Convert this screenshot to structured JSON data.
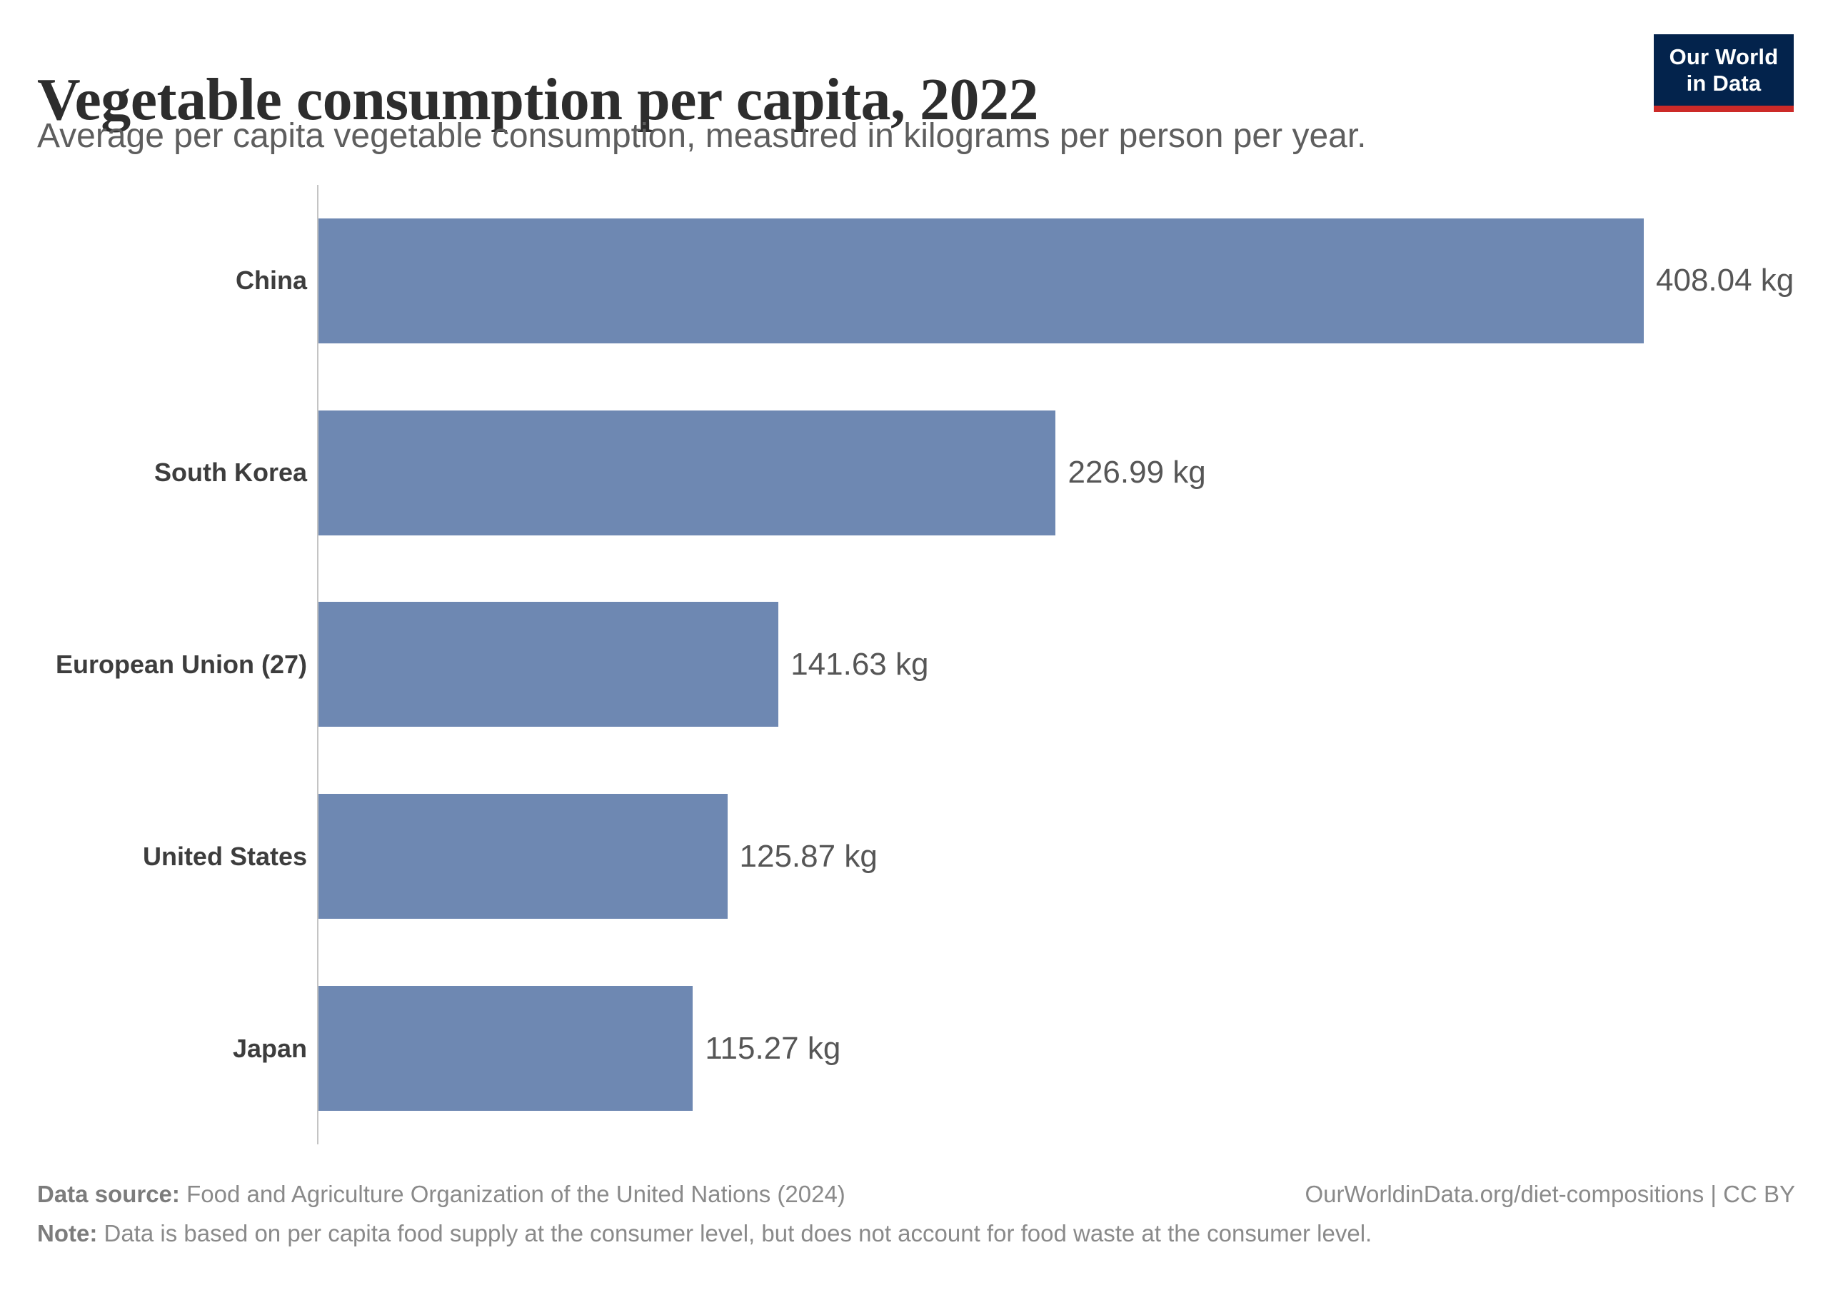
{
  "header": {
    "title": "Vegetable consumption per capita, 2022",
    "subtitle": "Average per capita vegetable consumption, measured in kilograms per person per year.",
    "logo": {
      "line1": "Our World",
      "line2": "in Data"
    }
  },
  "chart_data": {
    "type": "bar",
    "orientation": "horizontal",
    "title": "Vegetable consumption per capita, 2022",
    "categories": [
      "China",
      "South Korea",
      "European Union (27)",
      "United States",
      "Japan"
    ],
    "values": [
      408.04,
      226.99,
      141.63,
      125.87,
      115.27
    ],
    "value_labels": [
      "408.04 kg",
      "226.99 kg",
      "141.63 kg",
      "125.87 kg",
      "115.27 kg"
    ],
    "unit": "kg",
    "xlim": [
      0,
      408.04
    ],
    "grid": false,
    "legend": "none",
    "bar_color": "#6e88b2"
  },
  "footer": {
    "source_label": "Data source:",
    "source_text": " Food and Agriculture Organization of the United Nations (2024)",
    "link_text": "OurWorldinData.org/diet-compositions | CC BY",
    "note_label": "Note:",
    "note_text": " Data is based on per capita food supply at the consumer level, but does not account for food waste at the consumer level."
  },
  "colors": {
    "bar": "#6e88b2",
    "axis_line": "#c4c4c4",
    "logo_background": "#03234c",
    "logo_underline": "#cc2a28",
    "title_text": "#2d2d2d",
    "subtitle_text": "#5e5e5e",
    "category_text": "#3d3d3d",
    "value_text": "#565656",
    "footer_text": "#8a8a8a"
  }
}
